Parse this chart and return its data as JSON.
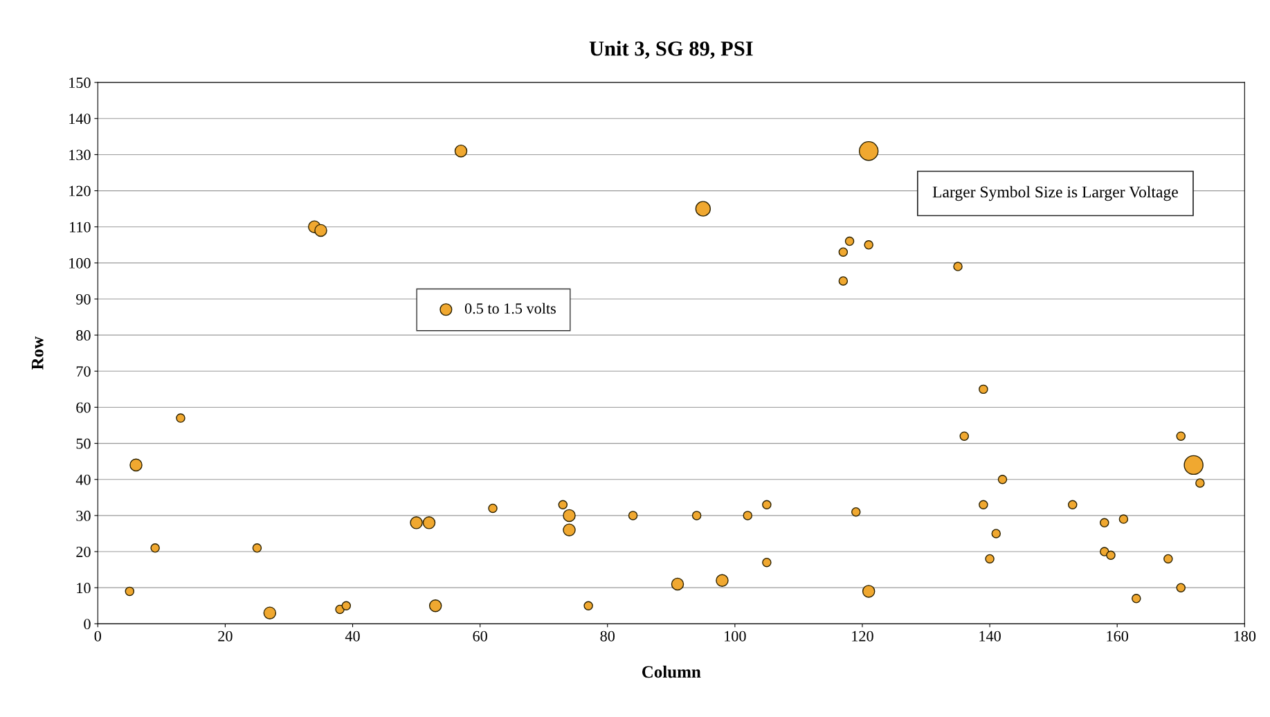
{
  "chart_data": {
    "type": "bubble",
    "title": "Unit 3, SG 89, PSI",
    "xlabel": "Column",
    "ylabel": "Row",
    "xlim": [
      0,
      180
    ],
    "xticks": [
      0,
      20,
      40,
      60,
      80,
      100,
      120,
      140,
      160,
      180
    ],
    "ylim": [
      0,
      150
    ],
    "yticks": [
      0,
      10,
      20,
      30,
      40,
      50,
      60,
      70,
      80,
      90,
      100,
      110,
      120,
      130,
      140,
      150
    ],
    "grid": "y",
    "legend": "center left",
    "marker": "circle",
    "annotations": [
      "Larger Symbol Size is Larger Voltage"
    ],
    "series": [
      {
        "name": "0.5 to 1.5 volts",
        "color": "#f0a830",
        "x": [
          5,
          6,
          9,
          13,
          25,
          27,
          34,
          35,
          38,
          39,
          50,
          52,
          53,
          57,
          62,
          73,
          74,
          74,
          77,
          84,
          91,
          94,
          95,
          98,
          102,
          105,
          105,
          117,
          117,
          118,
          119,
          121,
          121,
          121,
          135,
          136,
          139,
          139,
          140,
          141,
          142,
          153,
          158,
          158,
          159,
          161,
          163,
          168,
          170,
          170,
          172,
          173
        ],
        "values": [
          9,
          44,
          21,
          57,
          21,
          3,
          110,
          109,
          4,
          5,
          28,
          28,
          5,
          131,
          32,
          33,
          30,
          26,
          5,
          30,
          11,
          30,
          115,
          12,
          30,
          33,
          17,
          95,
          103,
          106,
          31,
          131,
          105,
          9,
          99,
          52,
          65,
          33,
          18,
          25,
          40,
          33,
          28,
          20,
          19,
          29,
          7,
          18,
          10,
          52,
          44,
          39
        ],
        "sizes": [
          0.2,
          0.4,
          0.2,
          0.2,
          0.2,
          0.4,
          0.4,
          0.4,
          0.2,
          0.2,
          0.4,
          0.4,
          0.4,
          0.4,
          0.2,
          0.2,
          0.4,
          0.4,
          0.2,
          0.2,
          0.4,
          0.2,
          0.6,
          0.4,
          0.2,
          0.2,
          0.2,
          0.2,
          0.2,
          0.2,
          0.2,
          1,
          0.2,
          0.4,
          0.2,
          0.2,
          0.2,
          0.2,
          0.2,
          0.2,
          0.2,
          0.2,
          0.2,
          0.2,
          0.2,
          0.2,
          0.2,
          0.2,
          0.2,
          0.2,
          1,
          0.2
        ]
      }
    ]
  }
}
